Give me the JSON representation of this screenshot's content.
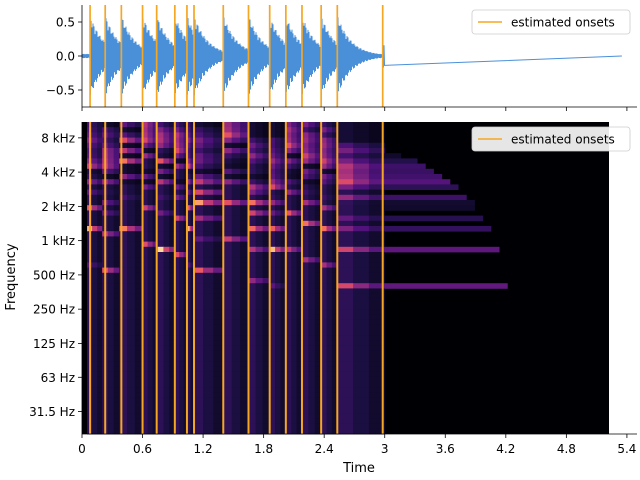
{
  "chart_data": [
    {
      "type": "line",
      "title": "",
      "xlabel": "",
      "ylabel": "",
      "ylim": [
        -0.75,
        0.75
      ],
      "yticks": [
        "0.5",
        "0.0",
        "−0.5"
      ],
      "ytick_values": [
        0.5,
        0.0,
        -0.5
      ],
      "waveform_color": "#4a90d9",
      "onset_color": "#f5a623",
      "legend": {
        "label": "estimated onsets",
        "placement": "top-right"
      },
      "signal_end_s": 3.0,
      "duration_s": 5.35
    },
    {
      "type": "heatmap",
      "title": "",
      "xlabel": "Time",
      "ylabel": "Frequency",
      "xlim": [
        0,
        5.5
      ],
      "xticks": [
        "0",
        "0.6",
        "1.2",
        "1.8",
        "2.4",
        "3",
        "3.6",
        "4.2",
        "4.8",
        "5.4"
      ],
      "xtick_values": [
        0,
        0.6,
        1.2,
        1.8,
        2.4,
        3.0,
        3.6,
        4.2,
        4.8,
        5.4
      ],
      "yscale": "log",
      "ylim_hz": [
        20,
        11025
      ],
      "yticks": [
        "8 kHz",
        "4 kHz",
        "2 kHz",
        "1 kHz",
        "500 Hz",
        "250 Hz",
        "125 Hz",
        "63 Hz",
        "31.5 Hz"
      ],
      "ytick_values_hz": [
        8000,
        4000,
        2000,
        1000,
        500,
        250,
        125,
        63,
        31.5
      ],
      "colormap": "magma",
      "legend": {
        "label": "estimated onsets",
        "placement": "top-right"
      },
      "onset_color": "#f5a623",
      "notes": [
        {
          "start": 0.05,
          "end": 0.2,
          "f0": 640
        },
        {
          "start": 0.2,
          "end": 0.37,
          "f0": 560
        },
        {
          "start": 0.37,
          "end": 0.6,
          "f0": 1260
        },
        {
          "start": 0.6,
          "end": 0.75,
          "f0": 950
        },
        {
          "start": 0.75,
          "end": 0.92,
          "f0": 840
        },
        {
          "start": 0.92,
          "end": 1.05,
          "f0": 770
        },
        {
          "start": 1.05,
          "end": 1.1,
          "f0": 640
        },
        {
          "start": 1.1,
          "end": 1.4,
          "f0": 540
        },
        {
          "start": 1.4,
          "end": 1.65,
          "f0": 1060
        },
        {
          "start": 1.65,
          "end": 1.86,
          "f0": 430
        },
        {
          "start": 1.86,
          "end": 2.02,
          "f0": 420
        },
        {
          "start": 2.02,
          "end": 2.18,
          "f0": 860
        },
        {
          "start": 2.18,
          "end": 2.37,
          "f0": 700
        },
        {
          "start": 2.37,
          "end": 2.53,
          "f0": 630
        },
        {
          "start": 2.53,
          "end": 3.0,
          "f0": 410
        }
      ]
    }
  ],
  "onsets_s": [
    0.08,
    0.23,
    0.39,
    0.6,
    0.74,
    0.92,
    1.04,
    1.11,
    1.4,
    1.65,
    1.86,
    2.02,
    2.18,
    2.37,
    2.53,
    2.98
  ]
}
